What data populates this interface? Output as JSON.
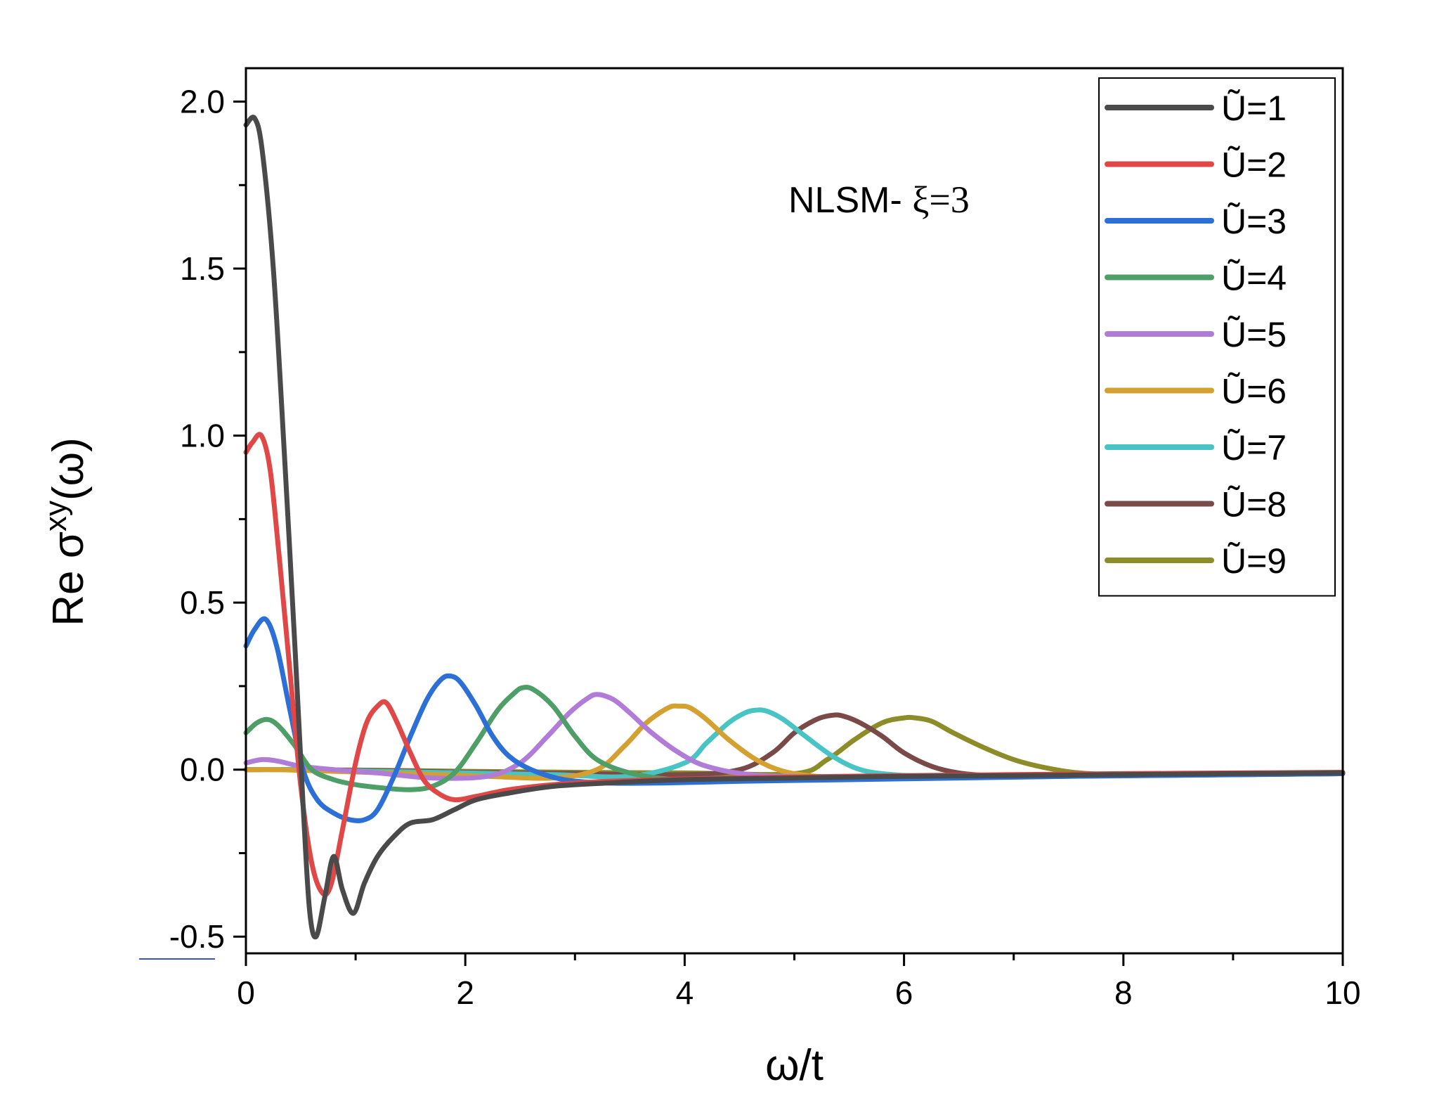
{
  "chart_data": {
    "type": "line",
    "xlabel": "ω/t",
    "ylabel": "Re σ",
    "ylabel_sup": "xy",
    "ylabel_tail": "(ω)",
    "annotation_prefix": "NLSM- ",
    "annotation_symbol": "ξ=3",
    "xlim": [
      0,
      10
    ],
    "ylim": [
      -0.55,
      2.1
    ],
    "x_ticks": [
      0,
      2,
      4,
      6,
      8,
      10
    ],
    "x_tick_labels": [
      "0",
      "2",
      "4",
      "6",
      "8",
      "10"
    ],
    "y_ticks": [
      -0.5,
      0.0,
      0.5,
      1.0,
      1.5,
      2.0
    ],
    "y_tick_labels": [
      "-0.5",
      "0.0",
      "0.5",
      "1.0",
      "1.5",
      "2.0"
    ],
    "legend_position": "top-right",
    "grid": false,
    "series": [
      {
        "name": "Ũ=1",
        "color": "#4a4a4a",
        "x": [
          0,
          0.08,
          0.15,
          0.25,
          0.35,
          0.45,
          0.52,
          0.58,
          0.64,
          0.72,
          0.8,
          0.88,
          0.98,
          1.08,
          1.2,
          1.35,
          1.5,
          1.7,
          1.9,
          2.1,
          2.4,
          2.8,
          3.3,
          4,
          5,
          6,
          7,
          8,
          9,
          10
        ],
        "values": [
          1.93,
          1.95,
          1.85,
          1.5,
          0.95,
          0.35,
          -0.1,
          -0.42,
          -0.5,
          -0.38,
          -0.26,
          -0.36,
          -0.43,
          -0.34,
          -0.26,
          -0.2,
          -0.16,
          -0.15,
          -0.12,
          -0.09,
          -0.07,
          -0.05,
          -0.04,
          -0.03,
          -0.025,
          -0.02,
          -0.018,
          -0.015,
          -0.012,
          -0.01
        ]
      },
      {
        "name": "Ũ=2",
        "color": "#e04848",
        "x": [
          0,
          0.06,
          0.14,
          0.22,
          0.3,
          0.4,
          0.5,
          0.6,
          0.7,
          0.78,
          0.88,
          1.0,
          1.1,
          1.2,
          1.28,
          1.38,
          1.5,
          1.62,
          1.75,
          1.9,
          2.1,
          2.4,
          2.8,
          3.3,
          4,
          5,
          6,
          7,
          8,
          9,
          10
        ],
        "values": [
          0.95,
          0.98,
          1.0,
          0.9,
          0.65,
          0.3,
          -0.05,
          -0.28,
          -0.37,
          -0.34,
          -0.18,
          0.02,
          0.14,
          0.19,
          0.2,
          0.14,
          0.05,
          -0.03,
          -0.07,
          -0.09,
          -0.08,
          -0.06,
          -0.045,
          -0.035,
          -0.028,
          -0.022,
          -0.018,
          -0.015,
          -0.012,
          -0.01,
          -0.008
        ]
      },
      {
        "name": "Ũ=3",
        "color": "#2c6fd6",
        "x": [
          0,
          0.08,
          0.18,
          0.28,
          0.4,
          0.52,
          0.65,
          0.8,
          0.95,
          1.08,
          1.2,
          1.35,
          1.5,
          1.65,
          1.78,
          1.87,
          1.96,
          2.1,
          2.25,
          2.4,
          2.6,
          2.9,
          3.3,
          3.8,
          4.5,
          5.5,
          6.5,
          7.5,
          8.5,
          10
        ],
        "values": [
          0.37,
          0.42,
          0.45,
          0.37,
          0.18,
          0.0,
          -0.09,
          -0.13,
          -0.15,
          -0.15,
          -0.12,
          -0.02,
          0.1,
          0.21,
          0.27,
          0.28,
          0.26,
          0.19,
          0.1,
          0.04,
          0.0,
          -0.03,
          -0.04,
          -0.04,
          -0.035,
          -0.03,
          -0.025,
          -0.02,
          -0.017,
          -0.012
        ]
      },
      {
        "name": "Ũ=4",
        "color": "#4e9e68",
        "x": [
          0,
          0.1,
          0.2,
          0.3,
          0.45,
          0.6,
          0.8,
          1.0,
          1.25,
          1.5,
          1.7,
          1.9,
          2.1,
          2.3,
          2.45,
          2.52,
          2.62,
          2.8,
          3.0,
          3.2,
          3.5,
          3.9,
          4.4,
          5,
          6,
          7,
          8,
          9,
          10
        ],
        "values": [
          0.11,
          0.14,
          0.15,
          0.13,
          0.07,
          0.0,
          -0.03,
          -0.045,
          -0.055,
          -0.06,
          -0.05,
          -0.01,
          0.08,
          0.18,
          0.23,
          0.245,
          0.24,
          0.19,
          0.1,
          0.03,
          -0.01,
          -0.03,
          -0.035,
          -0.03,
          -0.025,
          -0.02,
          -0.017,
          -0.014,
          -0.012
        ]
      },
      {
        "name": "Ũ=5",
        "color": "#b07cd8",
        "x": [
          0,
          0.15,
          0.3,
          0.5,
          0.8,
          1.2,
          1.7,
          2.2,
          2.5,
          2.75,
          2.95,
          3.1,
          3.2,
          3.35,
          3.5,
          3.7,
          3.95,
          4.2,
          4.6,
          5.2,
          6,
          7,
          8,
          9,
          10
        ],
        "values": [
          0.02,
          0.03,
          0.025,
          0.01,
          0.0,
          -0.01,
          -0.025,
          -0.02,
          0.02,
          0.1,
          0.17,
          0.21,
          0.225,
          0.21,
          0.17,
          0.11,
          0.05,
          0.01,
          -0.015,
          -0.022,
          -0.022,
          -0.02,
          -0.017,
          -0.014,
          -0.012
        ]
      },
      {
        "name": "Ũ=6",
        "color": "#d4a030",
        "x": [
          0,
          0.3,
          0.8,
          1.5,
          2.2,
          2.8,
          3.2,
          3.45,
          3.65,
          3.85,
          3.95,
          4.05,
          4.2,
          4.4,
          4.65,
          4.9,
          5.2,
          5.6,
          6.2,
          7,
          8,
          9,
          10
        ],
        "values": [
          0.0,
          0.0,
          -0.005,
          -0.012,
          -0.02,
          -0.025,
          0.0,
          0.07,
          0.14,
          0.185,
          0.19,
          0.185,
          0.15,
          0.09,
          0.03,
          -0.005,
          -0.02,
          -0.025,
          -0.025,
          -0.022,
          -0.018,
          -0.015,
          -0.012
        ]
      },
      {
        "name": "Ũ=7",
        "color": "#48c4c4",
        "x": [
          0,
          0.5,
          1.2,
          2,
          2.8,
          3.5,
          4.0,
          4.2,
          4.4,
          4.55,
          4.65,
          4.75,
          4.9,
          5.1,
          5.35,
          5.6,
          5.9,
          6.3,
          7,
          8,
          9,
          10
        ],
        "values": [
          0.0,
          0.0,
          -0.005,
          -0.01,
          -0.015,
          -0.02,
          0.02,
          0.08,
          0.14,
          0.17,
          0.178,
          0.175,
          0.15,
          0.1,
          0.04,
          0.0,
          -0.015,
          -0.02,
          -0.02,
          -0.018,
          -0.015,
          -0.012
        ]
      },
      {
        "name": "Ũ=8",
        "color": "#7a4a48",
        "x": [
          0,
          0.5,
          1.2,
          2,
          3,
          4,
          4.5,
          4.8,
          5.0,
          5.2,
          5.35,
          5.45,
          5.6,
          5.8,
          6.0,
          6.25,
          6.5,
          6.8,
          7.2,
          8,
          9,
          10
        ],
        "values": [
          0.0,
          0.0,
          -0.003,
          -0.008,
          -0.012,
          -0.015,
          0.0,
          0.05,
          0.11,
          0.15,
          0.163,
          0.16,
          0.14,
          0.1,
          0.05,
          0.01,
          -0.01,
          -0.018,
          -0.02,
          -0.018,
          -0.015,
          -0.012
        ]
      },
      {
        "name": "Ũ=9",
        "color": "#8c8c28",
        "x": [
          0,
          0.5,
          1.2,
          2,
          3,
          4,
          5,
          5.3,
          5.55,
          5.8,
          6.0,
          6.1,
          6.25,
          6.45,
          6.7,
          7.0,
          7.3,
          7.6,
          8,
          9,
          10
        ],
        "values": [
          0.0,
          0.0,
          -0.002,
          -0.005,
          -0.008,
          -0.01,
          -0.012,
          0.03,
          0.09,
          0.14,
          0.155,
          0.155,
          0.145,
          0.11,
          0.07,
          0.03,
          0.005,
          -0.01,
          -0.015,
          -0.015,
          -0.012
        ]
      }
    ]
  }
}
